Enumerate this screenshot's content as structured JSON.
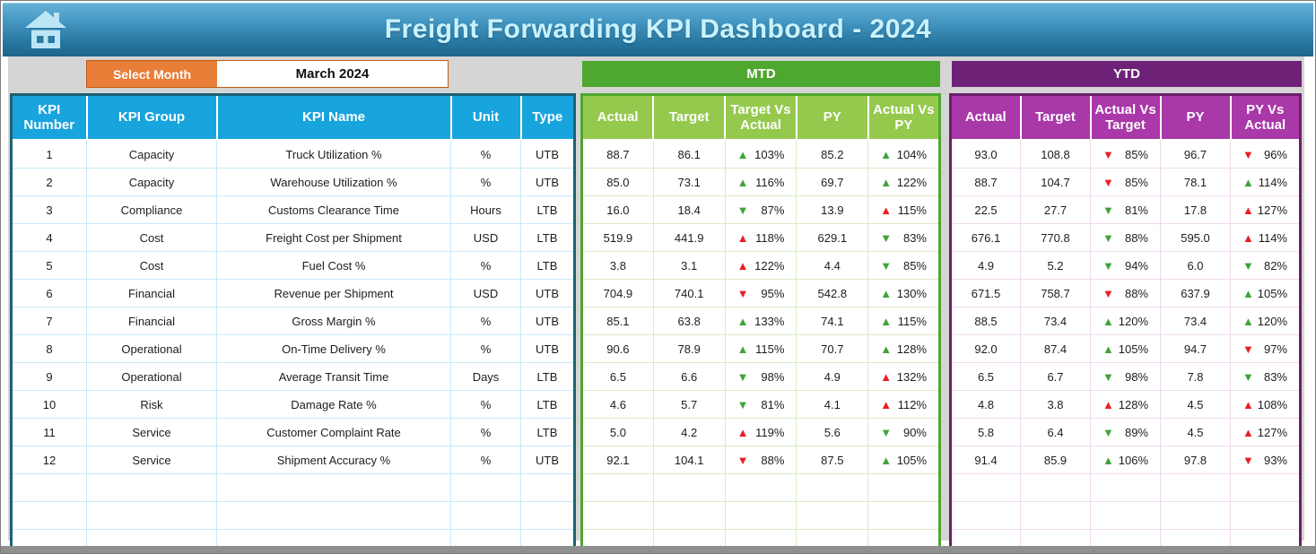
{
  "header": {
    "title": "Freight Forwarding KPI Dashboard - 2024"
  },
  "controls": {
    "select_month_label": "Select Month",
    "selected_month": "March 2024"
  },
  "sections": {
    "mtd_label": "MTD",
    "ytd_label": "YTD"
  },
  "kpi_table": {
    "headers": [
      "KPI Number",
      "KPI Group",
      "KPI Name",
      "Unit",
      "Type"
    ],
    "mtd_headers": [
      "Actual",
      "Target",
      "Target Vs Actual",
      "PY",
      "Actual Vs PY"
    ],
    "ytd_headers": [
      "Actual",
      "Target",
      "Actual Vs Target",
      "PY",
      "PY Vs Actual"
    ],
    "empty_rows": 3,
    "rows": [
      {
        "number": "1",
        "group": "Capacity",
        "name": "Truck Utilization %",
        "unit": "%",
        "type": "UTB",
        "mtd": {
          "actual": "88.7",
          "target": "86.1",
          "target_vs_actual": {
            "dir": "up",
            "color": "green",
            "value": "103%"
          },
          "py": "85.2",
          "actual_vs_py": {
            "dir": "up",
            "color": "green",
            "value": "104%"
          }
        },
        "ytd": {
          "actual": "93.0",
          "target": "108.8",
          "actual_vs_target": {
            "dir": "down",
            "color": "red",
            "value": "85%"
          },
          "py": "96.7",
          "py_vs_actual": {
            "dir": "down",
            "color": "red",
            "value": "96%"
          }
        }
      },
      {
        "number": "2",
        "group": "Capacity",
        "name": "Warehouse Utilization %",
        "unit": "%",
        "type": "UTB",
        "mtd": {
          "actual": "85.0",
          "target": "73.1",
          "target_vs_actual": {
            "dir": "up",
            "color": "green",
            "value": "116%"
          },
          "py": "69.7",
          "actual_vs_py": {
            "dir": "up",
            "color": "green",
            "value": "122%"
          }
        },
        "ytd": {
          "actual": "88.7",
          "target": "104.7",
          "actual_vs_target": {
            "dir": "down",
            "color": "red",
            "value": "85%"
          },
          "py": "78.1",
          "py_vs_actual": {
            "dir": "up",
            "color": "green",
            "value": "114%"
          }
        }
      },
      {
        "number": "3",
        "group": "Compliance",
        "name": "Customs Clearance Time",
        "unit": "Hours",
        "type": "LTB",
        "mtd": {
          "actual": "16.0",
          "target": "18.4",
          "target_vs_actual": {
            "dir": "down",
            "color": "green",
            "value": "87%"
          },
          "py": "13.9",
          "actual_vs_py": {
            "dir": "up",
            "color": "red",
            "value": "115%"
          }
        },
        "ytd": {
          "actual": "22.5",
          "target": "27.7",
          "actual_vs_target": {
            "dir": "down",
            "color": "green",
            "value": "81%"
          },
          "py": "17.8",
          "py_vs_actual": {
            "dir": "up",
            "color": "red",
            "value": "127%"
          }
        }
      },
      {
        "number": "4",
        "group": "Cost",
        "name": "Freight Cost per Shipment",
        "unit": "USD",
        "type": "LTB",
        "mtd": {
          "actual": "519.9",
          "target": "441.9",
          "target_vs_actual": {
            "dir": "up",
            "color": "red",
            "value": "118%"
          },
          "py": "629.1",
          "actual_vs_py": {
            "dir": "down",
            "color": "green",
            "value": "83%"
          }
        },
        "ytd": {
          "actual": "676.1",
          "target": "770.8",
          "actual_vs_target": {
            "dir": "down",
            "color": "green",
            "value": "88%"
          },
          "py": "595.0",
          "py_vs_actual": {
            "dir": "up",
            "color": "red",
            "value": "114%"
          }
        }
      },
      {
        "number": "5",
        "group": "Cost",
        "name": "Fuel Cost %",
        "unit": "%",
        "type": "LTB",
        "mtd": {
          "actual": "3.8",
          "target": "3.1",
          "target_vs_actual": {
            "dir": "up",
            "color": "red",
            "value": "122%"
          },
          "py": "4.4",
          "actual_vs_py": {
            "dir": "down",
            "color": "green",
            "value": "85%"
          }
        },
        "ytd": {
          "actual": "4.9",
          "target": "5.2",
          "actual_vs_target": {
            "dir": "down",
            "color": "green",
            "value": "94%"
          },
          "py": "6.0",
          "py_vs_actual": {
            "dir": "down",
            "color": "green",
            "value": "82%"
          }
        }
      },
      {
        "number": "6",
        "group": "Financial",
        "name": "Revenue per Shipment",
        "unit": "USD",
        "type": "UTB",
        "mtd": {
          "actual": "704.9",
          "target": "740.1",
          "target_vs_actual": {
            "dir": "down",
            "color": "red",
            "value": "95%"
          },
          "py": "542.8",
          "actual_vs_py": {
            "dir": "up",
            "color": "green",
            "value": "130%"
          }
        },
        "ytd": {
          "actual": "671.5",
          "target": "758.7",
          "actual_vs_target": {
            "dir": "down",
            "color": "red",
            "value": "88%"
          },
          "py": "637.9",
          "py_vs_actual": {
            "dir": "up",
            "color": "green",
            "value": "105%"
          }
        }
      },
      {
        "number": "7",
        "group": "Financial",
        "name": "Gross Margin %",
        "unit": "%",
        "type": "UTB",
        "mtd": {
          "actual": "85.1",
          "target": "63.8",
          "target_vs_actual": {
            "dir": "up",
            "color": "green",
            "value": "133%"
          },
          "py": "74.1",
          "actual_vs_py": {
            "dir": "up",
            "color": "green",
            "value": "115%"
          }
        },
        "ytd": {
          "actual": "88.5",
          "target": "73.4",
          "actual_vs_target": {
            "dir": "up",
            "color": "green",
            "value": "120%"
          },
          "py": "73.4",
          "py_vs_actual": {
            "dir": "up",
            "color": "green",
            "value": "120%"
          }
        }
      },
      {
        "number": "8",
        "group": "Operational",
        "name": "On-Time Delivery %",
        "unit": "%",
        "type": "UTB",
        "mtd": {
          "actual": "90.6",
          "target": "78.9",
          "target_vs_actual": {
            "dir": "up",
            "color": "green",
            "value": "115%"
          },
          "py": "70.7",
          "actual_vs_py": {
            "dir": "up",
            "color": "green",
            "value": "128%"
          }
        },
        "ytd": {
          "actual": "92.0",
          "target": "87.4",
          "actual_vs_target": {
            "dir": "up",
            "color": "green",
            "value": "105%"
          },
          "py": "94.7",
          "py_vs_actual": {
            "dir": "down",
            "color": "red",
            "value": "97%"
          }
        }
      },
      {
        "number": "9",
        "group": "Operational",
        "name": "Average Transit Time",
        "unit": "Days",
        "type": "LTB",
        "mtd": {
          "actual": "6.5",
          "target": "6.6",
          "target_vs_actual": {
            "dir": "down",
            "color": "green",
            "value": "98%"
          },
          "py": "4.9",
          "actual_vs_py": {
            "dir": "up",
            "color": "red",
            "value": "132%"
          }
        },
        "ytd": {
          "actual": "6.5",
          "target": "6.7",
          "actual_vs_target": {
            "dir": "down",
            "color": "green",
            "value": "98%"
          },
          "py": "7.8",
          "py_vs_actual": {
            "dir": "down",
            "color": "green",
            "value": "83%"
          }
        }
      },
      {
        "number": "10",
        "group": "Risk",
        "name": "Damage Rate %",
        "unit": "%",
        "type": "LTB",
        "mtd": {
          "actual": "4.6",
          "target": "5.7",
          "target_vs_actual": {
            "dir": "down",
            "color": "green",
            "value": "81%"
          },
          "py": "4.1",
          "actual_vs_py": {
            "dir": "up",
            "color": "red",
            "value": "112%"
          }
        },
        "ytd": {
          "actual": "4.8",
          "target": "3.8",
          "actual_vs_target": {
            "dir": "up",
            "color": "red",
            "value": "128%"
          },
          "py": "4.5",
          "py_vs_actual": {
            "dir": "up",
            "color": "red",
            "value": "108%"
          }
        }
      },
      {
        "number": "11",
        "group": "Service",
        "name": "Customer Complaint Rate",
        "unit": "%",
        "type": "LTB",
        "mtd": {
          "actual": "5.0",
          "target": "4.2",
          "target_vs_actual": {
            "dir": "up",
            "color": "red",
            "value": "119%"
          },
          "py": "5.6",
          "actual_vs_py": {
            "dir": "down",
            "color": "green",
            "value": "90%"
          }
        },
        "ytd": {
          "actual": "5.8",
          "target": "6.4",
          "actual_vs_target": {
            "dir": "down",
            "color": "green",
            "value": "89%"
          },
          "py": "4.5",
          "py_vs_actual": {
            "dir": "up",
            "color": "red",
            "value": "127%"
          }
        }
      },
      {
        "number": "12",
        "group": "Service",
        "name": "Shipment Accuracy %",
        "unit": "%",
        "type": "UTB",
        "mtd": {
          "actual": "92.1",
          "target": "104.1",
          "target_vs_actual": {
            "dir": "down",
            "color": "red",
            "value": "88%"
          },
          "py": "87.5",
          "actual_vs_py": {
            "dir": "up",
            "color": "green",
            "value": "105%"
          }
        },
        "ytd": {
          "actual": "91.4",
          "target": "85.9",
          "actual_vs_target": {
            "dir": "up",
            "color": "green",
            "value": "106%"
          },
          "py": "97.8",
          "py_vs_actual": {
            "dir": "down",
            "color": "red",
            "value": "93%"
          }
        }
      }
    ]
  },
  "colors": {
    "banner_blue_top": "#66b3da",
    "banner_blue_bottom": "#1c648a",
    "title_text": "#c9f2fd",
    "orange_button": "#e87e38",
    "kpi_header_cyan": "#18a4dd",
    "mtd_banner_green": "#4ea72e",
    "mtd_header_green": "#95c94e",
    "ytd_banner_purple": "#6e2277",
    "ytd_header_magenta": "#a938a8",
    "trend_up_good": "#3ea438",
    "trend_bad": "#ec1c24",
    "work_area_gray": "#d5d5d5"
  }
}
